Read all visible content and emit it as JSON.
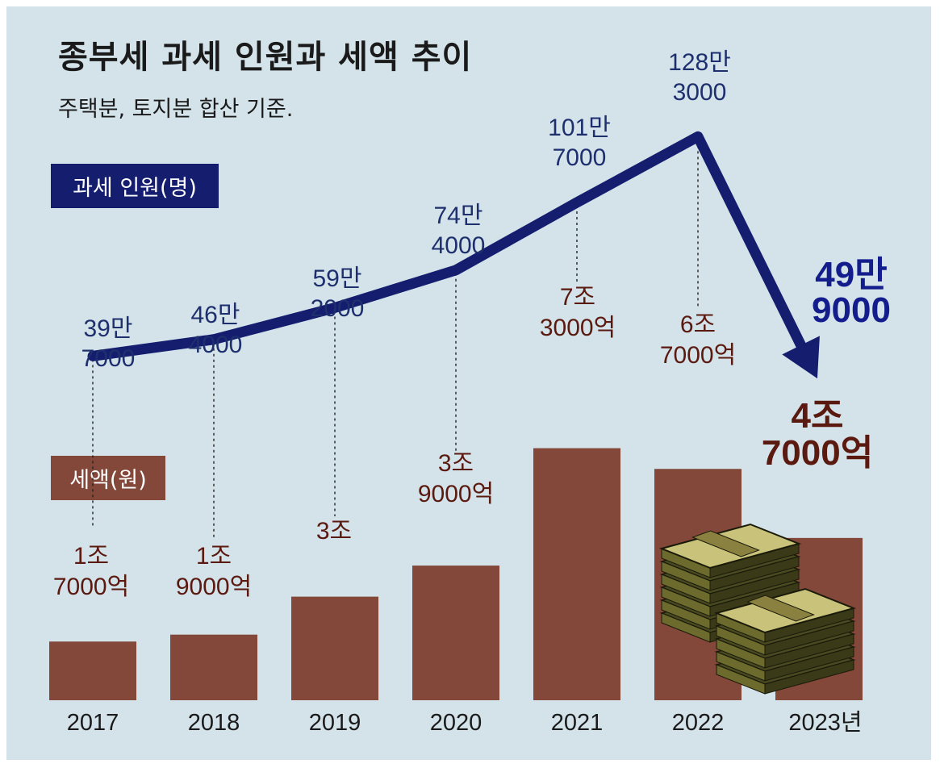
{
  "title": "종부세 과세 인원과 세액 추이",
  "subtitle": "주택분, 토지분 합산 기준.",
  "legend": {
    "people": "과세 인원(명)",
    "tax": "세액(원)"
  },
  "colors": {
    "background": "#d4e3ea",
    "line": "#141d6e",
    "bar": "#83483a",
    "people_label": "#1e2f6e",
    "tax_label": "#5a1a10",
    "people_label_highlight": "#141d8c"
  },
  "chart_data": {
    "type": "bar+line",
    "title": "종부세 과세 인원과 세액 추이",
    "subtitle": "주택분, 토지분 합산 기준.",
    "categories": [
      "2017",
      "2018",
      "2019",
      "2020",
      "2021",
      "2022",
      "2023년"
    ],
    "series": [
      {
        "name": "과세 인원(명)",
        "type": "line",
        "values": [
          397000,
          464000,
          592000,
          744000,
          1017000,
          1283000,
          499000
        ],
        "labels": [
          [
            "39만",
            "7000"
          ],
          [
            "46만",
            "4000"
          ],
          [
            "59만",
            "2000"
          ],
          [
            "74만",
            "4000"
          ],
          [
            "101만",
            "7000"
          ],
          [
            "128만",
            "3000"
          ],
          [
            "49만",
            "9000"
          ]
        ]
      },
      {
        "name": "세액(원)",
        "type": "bar",
        "values": [
          17000,
          19000,
          30000,
          39000,
          73000,
          67000,
          47000
        ],
        "unit": "억",
        "labels": [
          [
            "1조",
            "7000억"
          ],
          [
            "1조",
            "9000억"
          ],
          [
            "3조"
          ],
          [
            "3조",
            "9000억"
          ],
          [
            "7조",
            "3000억"
          ],
          [
            "6조",
            "7000억"
          ],
          [
            "4조",
            "7000억"
          ]
        ]
      }
    ],
    "highlight_last": true,
    "decoration": "money-stacks-icon"
  }
}
